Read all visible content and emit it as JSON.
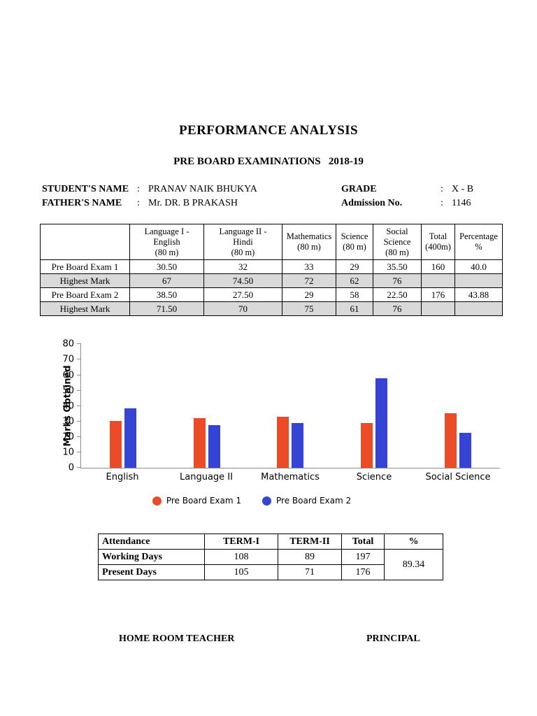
{
  "punct": {
    "colon": ":"
  },
  "page": {
    "title": "PERFORMANCE ANALYSIS",
    "subtitle": "PRE BOARD EXAMINATIONS   2018-19"
  },
  "student_info": {
    "name_label": "STUDENT'S NAME",
    "name_value": "PRANAV NAIK BHUKYA",
    "father_label": "FATHER'S NAME",
    "father_value": "Mr. DR. B PRAKASH",
    "grade_label": "GRADE",
    "grade_value": "X - B",
    "admission_label": "Admission No.",
    "admission_value": "1146"
  },
  "marks_table": {
    "headers": [
      "",
      "Language I -\nEnglish\n(80 m)",
      "Language II -\nHindi\n(80 m)",
      "Mathematics\n(80 m)",
      "Science\n(80 m)",
      "Social\nScience\n(80 m)",
      "Total\n(400m)",
      "Percentage\n%"
    ],
    "rows": [
      {
        "label": "Pre Board Exam 1",
        "values": [
          "30.50",
          "32",
          "33",
          "29",
          "35.50",
          "160",
          "40.0"
        ],
        "shaded": false
      },
      {
        "label": "Highest Mark",
        "values": [
          "67",
          "74.50",
          "72",
          "62",
          "76",
          "",
          ""
        ],
        "shaded": true
      },
      {
        "label": "Pre Board Exam 2",
        "values": [
          "38.50",
          "27.50",
          "29",
          "58",
          "22.50",
          "176",
          "43.88"
        ],
        "shaded": false
      },
      {
        "label": "Highest Mark",
        "values": [
          "71.50",
          "70",
          "75",
          "61",
          "76",
          "",
          ""
        ],
        "shaded": true
      }
    ],
    "shaded_row_color": "#d9d9d9"
  },
  "chart_data": {
    "type": "bar",
    "title": "",
    "categories": [
      "English",
      "Language II",
      "Mathematics",
      "Science",
      "Social Science"
    ],
    "series": [
      {
        "name": "Pre Board Exam 1",
        "color": "#ec4b27",
        "values": [
          30.5,
          32,
          33,
          29,
          35.5
        ]
      },
      {
        "name": "Pre Board Exam 2",
        "color": "#3644d6",
        "values": [
          38.5,
          27.5,
          29,
          58,
          22.5
        ]
      }
    ],
    "xlabel": "",
    "ylabel": "Marks Obtained",
    "ylim": [
      0,
      80
    ],
    "yticks": [
      0,
      10,
      20,
      30,
      40,
      50,
      60,
      70,
      80
    ],
    "grid": false,
    "legend_position": "bottom"
  },
  "attendance_table": {
    "headers": [
      "Attendance",
      "TERM-I",
      "TERM-II",
      "Total",
      "%"
    ],
    "rows": [
      {
        "label": "Working Days",
        "values": [
          "108",
          "89",
          "197"
        ]
      },
      {
        "label": "Present Days",
        "values": [
          "105",
          "71",
          "176"
        ]
      }
    ],
    "percentage": "89.34"
  },
  "footer": {
    "left": "HOME ROOM TEACHER",
    "right": "PRINCIPAL"
  }
}
